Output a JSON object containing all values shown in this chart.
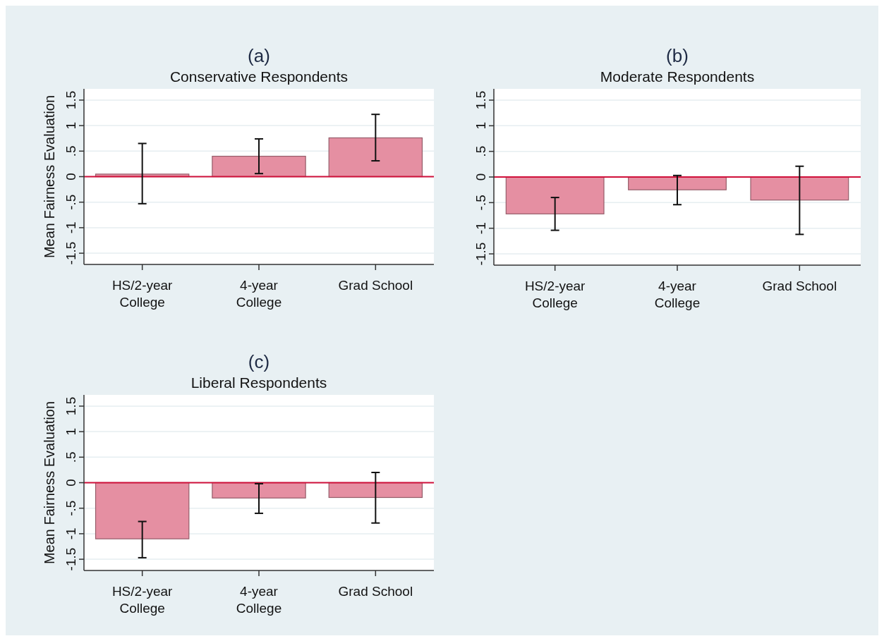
{
  "chart_data": [
    {
      "type": "bar",
      "title": "(a)",
      "subtitle": "Conservative Respondents",
      "ylabel": "Mean Fairness Evaluation",
      "categories": [
        "HS/2-year\nCollege",
        "4-year\nCollege",
        "Grad School"
      ],
      "values": [
        0.05,
        0.4,
        0.76
      ],
      "errors": [
        [
          -0.53,
          0.65
        ],
        [
          0.06,
          0.74
        ],
        [
          0.31,
          1.22
        ]
      ],
      "colors": [
        "#e58fa2",
        "#e58fa2",
        "#e58fa2"
      ],
      "ylim": [
        -1.72,
        1.72
      ],
      "yticks": [
        {
          "value": -1.5,
          "label": "-1.5"
        },
        {
          "value": -1,
          "label": "-1"
        },
        {
          "value": -0.5,
          "label": "-.5"
        },
        0,
        {
          "value": 0.5,
          "label": ".5"
        },
        1,
        1.5
      ],
      "grid": "y",
      "ref_lines": [
        {
          "axis": "y",
          "value": 0,
          "color": "#d0103a"
        }
      ]
    },
    {
      "type": "bar",
      "title": "(b)",
      "subtitle": "Moderate Respondents",
      "categories": [
        "HS/2-year\nCollege",
        "4-year\nCollege",
        "Grad School"
      ],
      "values": [
        -0.72,
        -0.25,
        -0.45
      ],
      "errors": [
        [
          -1.04,
          -0.4
        ],
        [
          -0.54,
          0.03
        ],
        [
          -1.12,
          0.21
        ]
      ],
      "colors": [
        "#e58fa2",
        "#e58fa2",
        "#e58fa2"
      ],
      "ylim": [
        -1.72,
        1.72
      ],
      "yticks": [
        {
          "value": -1.5,
          "label": "-1.5"
        },
        {
          "value": -1,
          "label": "-1"
        },
        {
          "value": -0.5,
          "label": "-.5"
        },
        0,
        {
          "value": 0.5,
          "label": ".5"
        },
        1,
        1.5
      ],
      "grid": "y",
      "ref_lines": [
        {
          "axis": "y",
          "value": 0,
          "color": "#d0103a"
        }
      ]
    },
    {
      "type": "bar",
      "title": "(c)",
      "subtitle": "Liberal Respondents",
      "ylabel": "Mean Fairness Evaluation",
      "categories": [
        "HS/2-year\nCollege",
        "4-year\nCollege",
        "Grad School"
      ],
      "values": [
        -1.1,
        -0.3,
        -0.29
      ],
      "errors": [
        [
          -1.47,
          -0.76
        ],
        [
          -0.6,
          -0.02
        ],
        [
          -0.79,
          0.2
        ]
      ],
      "colors": [
        "#e58fa2",
        "#e58fa2",
        "#e58fa2"
      ],
      "ylim": [
        -1.72,
        1.72
      ],
      "yticks": [
        {
          "value": -1.5,
          "label": "-1.5"
        },
        {
          "value": -1,
          "label": "-1"
        },
        {
          "value": -0.5,
          "label": "-.5"
        },
        0,
        {
          "value": 0.5,
          "label": ".5"
        },
        1,
        1.5
      ],
      "grid": "y",
      "ref_lines": [
        {
          "axis": "y",
          "value": 0,
          "color": "#d0103a"
        }
      ]
    }
  ]
}
